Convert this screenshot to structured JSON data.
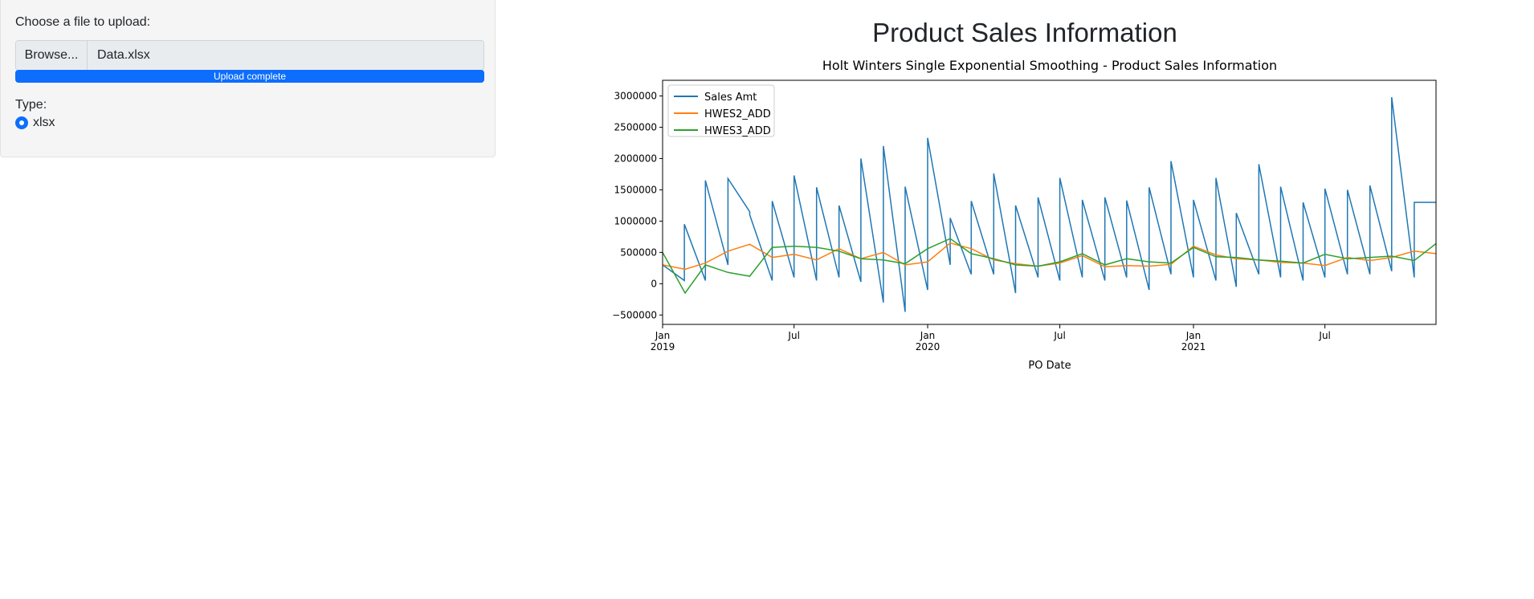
{
  "sidebar": {
    "file_label": "Choose a file to upload:",
    "browse_label": "Browse...",
    "file_name": "Data.xlsx",
    "progress_text": "Upload complete",
    "progress_value": 1.0,
    "type_label": "Type:",
    "type_option": "xlsx"
  },
  "main": {
    "title": "Product Sales Information"
  },
  "colors": {
    "accent": "#0d6efd",
    "sales": "#1f77b4",
    "hwes2": "#ff7f0e",
    "hwes3": "#2ca02c"
  },
  "chart_data": {
    "type": "line",
    "title": "Holt Winters Single Exponential Smoothing - Product Sales Information",
    "xlabel": "PO Date",
    "ylabel": "",
    "x_range": [
      "2019-01-01",
      "2021-12-01"
    ],
    "ylim": [
      -650000,
      3250000
    ],
    "y_ticks": [
      -500000,
      0,
      500000,
      1000000,
      1500000,
      2000000,
      2500000,
      3000000
    ],
    "y_tick_labels": [
      "−500000",
      "0",
      "500000",
      "1000000",
      "1500000",
      "2000000",
      "2500000",
      "3000000"
    ],
    "x_ticks": [
      {
        "date": "2019-01-01",
        "major": "Jan",
        "minor": "2019"
      },
      {
        "date": "2019-07-01",
        "major": "Jul",
        "minor": ""
      },
      {
        "date": "2020-01-01",
        "major": "Jan",
        "minor": "2020"
      },
      {
        "date": "2020-07-01",
        "major": "Jul",
        "minor": ""
      },
      {
        "date": "2021-01-01",
        "major": "Jan",
        "minor": "2021"
      },
      {
        "date": "2021-07-01",
        "major": "Jul",
        "minor": ""
      }
    ],
    "legend_position": "top-left",
    "grid": false,
    "series": [
      {
        "name": "Sales Amt",
        "x": [
          "2019-01-01",
          "2019-01-31",
          "2019-01-31",
          "2019-03-01",
          "2019-03-01",
          "2019-04-01",
          "2019-04-01",
          "2019-05-01",
          "2019-05-01",
          "2019-06-01",
          "2019-06-01",
          "2019-07-01",
          "2019-07-01",
          "2019-08-01",
          "2019-08-01",
          "2019-09-01",
          "2019-09-01",
          "2019-10-01",
          "2019-10-01",
          "2019-11-01",
          "2019-11-01",
          "2019-12-01",
          "2019-12-01",
          "2020-01-01",
          "2020-01-01",
          "2020-02-01",
          "2020-02-01",
          "2020-03-01",
          "2020-03-01",
          "2020-04-01",
          "2020-04-01",
          "2020-05-01",
          "2020-05-01",
          "2020-06-01",
          "2020-06-01",
          "2020-07-01",
          "2020-07-01",
          "2020-08-01",
          "2020-08-01",
          "2020-09-01",
          "2020-09-01",
          "2020-10-01",
          "2020-10-01",
          "2020-11-01",
          "2020-11-01",
          "2020-12-01",
          "2020-12-01",
          "2021-01-01",
          "2021-01-01",
          "2021-02-01",
          "2021-02-01",
          "2021-03-01",
          "2021-03-01",
          "2021-04-01",
          "2021-04-01",
          "2021-05-01",
          "2021-05-01",
          "2021-06-01",
          "2021-06-01",
          "2021-07-01",
          "2021-07-01",
          "2021-08-01",
          "2021-08-01",
          "2021-09-01",
          "2021-09-01",
          "2021-10-01",
          "2021-10-01",
          "2021-11-01",
          "2021-11-01",
          "2021-12-01"
        ],
        "y": [
          300000,
          50000,
          950000,
          50000,
          1650000,
          300000,
          1680000,
          1150000,
          1100000,
          50000,
          1320000,
          100000,
          1730000,
          50000,
          1540000,
          100000,
          1250000,
          30000,
          2000000,
          -300000,
          2200000,
          -450000,
          1550000,
          -100000,
          2330000,
          300000,
          1050000,
          150000,
          1320000,
          150000,
          1760000,
          -150000,
          1250000,
          100000,
          1380000,
          50000,
          1690000,
          100000,
          1340000,
          50000,
          1380000,
          100000,
          1330000,
          -100000,
          1540000,
          150000,
          1960000,
          100000,
          1340000,
          50000,
          1690000,
          -50000,
          1130000,
          150000,
          1910000,
          100000,
          1550000,
          50000,
          1300000,
          100000,
          1520000,
          150000,
          1500000,
          150000,
          1570000,
          200000,
          2980000,
          100000,
          1300000,
          1300000
        ]
      },
      {
        "name": "HWES2_ADD",
        "x": [
          "2019-01-01",
          "2019-02-01",
          "2019-03-01",
          "2019-04-01",
          "2019-05-01",
          "2019-06-01",
          "2019-07-01",
          "2019-08-01",
          "2019-09-01",
          "2019-10-01",
          "2019-11-01",
          "2019-12-01",
          "2020-01-01",
          "2020-02-01",
          "2020-03-01",
          "2020-04-01",
          "2020-05-01",
          "2020-06-01",
          "2020-07-01",
          "2020-08-01",
          "2020-09-01",
          "2020-10-01",
          "2020-11-01",
          "2020-12-01",
          "2021-01-01",
          "2021-02-01",
          "2021-03-01",
          "2021-04-01",
          "2021-05-01",
          "2021-06-01",
          "2021-07-01",
          "2021-08-01",
          "2021-09-01",
          "2021-10-01",
          "2021-11-01",
          "2021-12-01"
        ],
        "y": [
          300000,
          230000,
          330000,
          520000,
          630000,
          420000,
          470000,
          380000,
          560000,
          400000,
          500000,
          300000,
          350000,
          650000,
          560000,
          380000,
          320000,
          280000,
          330000,
          450000,
          270000,
          290000,
          280000,
          310000,
          600000,
          460000,
          400000,
          380000,
          340000,
          330000,
          290000,
          420000,
          370000,
          420000,
          520000,
          480000
        ]
      },
      {
        "name": "HWES3_ADD",
        "x": [
          "2019-01-01",
          "2019-02-01",
          "2019-03-01",
          "2019-04-01",
          "2019-05-01",
          "2019-06-01",
          "2019-07-01",
          "2019-08-01",
          "2019-09-01",
          "2019-10-01",
          "2019-11-01",
          "2019-12-01",
          "2020-01-01",
          "2020-02-01",
          "2020-03-01",
          "2020-04-01",
          "2020-05-01",
          "2020-06-01",
          "2020-07-01",
          "2020-08-01",
          "2020-09-01",
          "2020-10-01",
          "2020-11-01",
          "2020-12-01",
          "2021-01-01",
          "2021-02-01",
          "2021-03-01",
          "2021-04-01",
          "2021-05-01",
          "2021-06-01",
          "2021-07-01",
          "2021-08-01",
          "2021-09-01",
          "2021-10-01",
          "2021-11-01",
          "2021-12-01"
        ],
        "y": [
          500000,
          -150000,
          300000,
          180000,
          120000,
          580000,
          600000,
          580000,
          520000,
          400000,
          380000,
          320000,
          560000,
          720000,
          480000,
          400000,
          300000,
          280000,
          350000,
          480000,
          300000,
          400000,
          350000,
          330000,
          580000,
          430000,
          420000,
          380000,
          360000,
          330000,
          470000,
          400000,
          420000,
          440000,
          370000,
          640000
        ]
      }
    ]
  }
}
